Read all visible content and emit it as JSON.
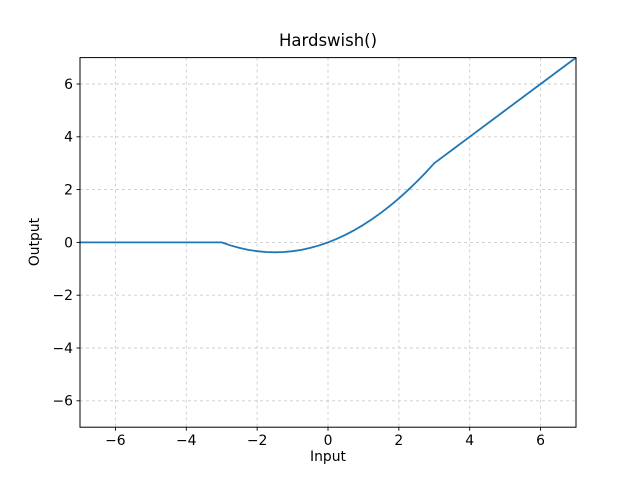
{
  "chart_data": {
    "type": "line",
    "title": "Hardswish()",
    "xlabel": "Input",
    "ylabel": "Output",
    "xlim": [
      -7,
      7
    ],
    "ylim": [
      -7,
      7
    ],
    "xticks": [
      -6,
      -4,
      -2,
      0,
      2,
      4,
      6
    ],
    "yticks": [
      -6,
      -4,
      -2,
      0,
      2,
      4,
      6
    ],
    "xtick_labels": [
      "−6",
      "−4",
      "−2",
      "0",
      "2",
      "4",
      "6"
    ],
    "ytick_labels": [
      "−6",
      "−4",
      "−2",
      "0",
      "2",
      "4",
      "6"
    ],
    "grid": true,
    "legend": "none",
    "colors": {
      "line": "#1f77b4",
      "grid": "#cccccc",
      "frame": "#000000",
      "background": "#ffffff"
    },
    "series": [
      {
        "name": "Hardswish",
        "x": [
          -7,
          -6,
          -5,
          -4,
          -3.5,
          -3,
          -2.75,
          -2.5,
          -2.25,
          -2,
          -1.75,
          -1.5,
          -1.25,
          -1,
          -0.75,
          -0.5,
          -0.25,
          0,
          0.25,
          0.5,
          0.75,
          1,
          1.25,
          1.5,
          1.75,
          2,
          2.25,
          2.5,
          2.75,
          3,
          3.5,
          4,
          5,
          6,
          7
        ],
        "y": [
          0,
          0,
          0,
          0,
          0,
          0,
          -0.1146,
          -0.2083,
          -0.2813,
          -0.3333,
          -0.3646,
          -0.375,
          -0.3646,
          -0.3333,
          -0.2813,
          -0.2083,
          -0.1146,
          0,
          0.1354,
          0.2917,
          0.4688,
          0.6667,
          0.8854,
          1.125,
          1.3854,
          1.6667,
          1.9688,
          2.2917,
          2.6354,
          3,
          3.5,
          4,
          5,
          6,
          7
        ]
      }
    ]
  }
}
